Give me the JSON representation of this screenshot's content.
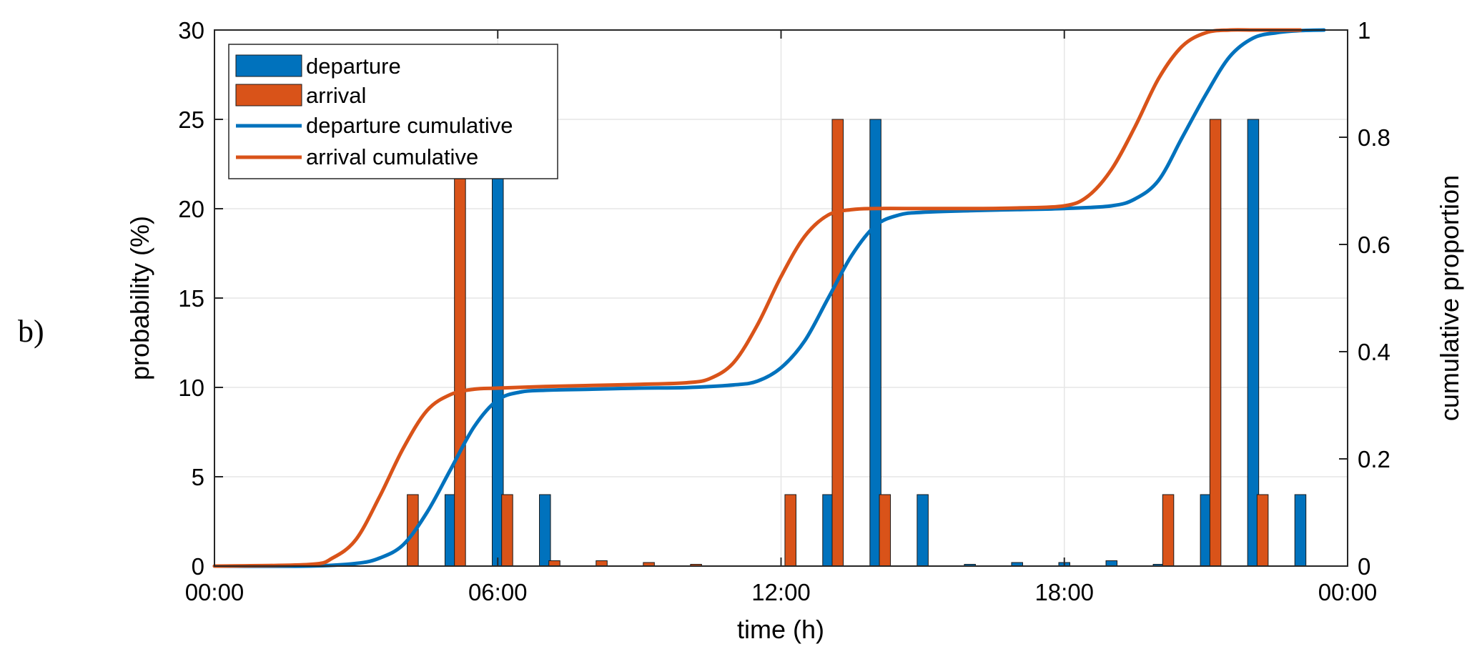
{
  "panel_label": "b)",
  "chart_data": {
    "type": "bar",
    "xlabel": "time (h)",
    "ylabel": "probability (%)",
    "y2label": "cumulative proportion",
    "xlim": [
      0,
      24
    ],
    "ylim": [
      0,
      30
    ],
    "y2lim": [
      0,
      1
    ],
    "grid": true,
    "legend_position": "top-left",
    "x_ticks": [
      {
        "value": 0,
        "label": "00:00"
      },
      {
        "value": 6,
        "label": "06:00"
      },
      {
        "value": 12,
        "label": "12:00"
      },
      {
        "value": 18,
        "label": "18:00"
      },
      {
        "value": 24,
        "label": "00:00"
      }
    ],
    "y_ticks": [
      0,
      5,
      10,
      15,
      20,
      25,
      30
    ],
    "y2_ticks": [
      {
        "value": 0,
        "label": "0"
      },
      {
        "value": 0.2,
        "label": "0.2"
      },
      {
        "value": 0.4,
        "label": "0.4"
      },
      {
        "value": 0.6,
        "label": "0.6"
      },
      {
        "value": 0.8,
        "label": "0.8"
      },
      {
        "value": 1,
        "label": "1"
      }
    ],
    "series": [
      {
        "name": "departure",
        "kind": "bar",
        "axis": "left",
        "color": "#0072BD",
        "x": [
          5.0,
          6.0,
          7.0,
          13.0,
          14.0,
          15.0,
          16.0,
          17.0,
          18.0,
          19.0,
          20.0,
          21.0,
          22.0,
          23.0
        ],
        "values": [
          4,
          22,
          4,
          4,
          25,
          4,
          0.1,
          0.2,
          0.2,
          0.3,
          0.1,
          4,
          25,
          4
        ]
      },
      {
        "name": "arrival",
        "kind": "bar",
        "axis": "left",
        "color": "#D95319",
        "x": [
          4.2,
          5.2,
          6.2,
          7.2,
          8.2,
          9.2,
          10.2,
          12.2,
          13.2,
          14.2,
          20.2,
          21.2,
          22.2
        ],
        "values": [
          4,
          22,
          4,
          0.3,
          0.3,
          0.2,
          0.1,
          4,
          25,
          4,
          4,
          25,
          4
        ]
      },
      {
        "name": "departure cumulative",
        "kind": "line",
        "axis": "right",
        "color": "#0072BD",
        "x": [
          0,
          2,
          3,
          3.5,
          4,
          4.5,
          5,
          5.5,
          6,
          6.5,
          7,
          8,
          9,
          10,
          11,
          11.5,
          12,
          12.5,
          13,
          13.5,
          14,
          14.5,
          15,
          16,
          17,
          18,
          19,
          19.5,
          20,
          20.5,
          21,
          21.5,
          22,
          22.5,
          23,
          23.5
        ],
        "values": [
          0,
          0,
          0.005,
          0.015,
          0.04,
          0.1,
          0.18,
          0.26,
          0.31,
          0.325,
          0.328,
          0.33,
          0.332,
          0.333,
          0.338,
          0.345,
          0.37,
          0.42,
          0.5,
          0.58,
          0.635,
          0.655,
          0.66,
          0.663,
          0.665,
          0.667,
          0.672,
          0.685,
          0.72,
          0.8,
          0.88,
          0.95,
          0.985,
          0.995,
          0.999,
          1.0
        ]
      },
      {
        "name": "arrival cumulative",
        "kind": "line",
        "axis": "right",
        "color": "#D95319",
        "x": [
          0,
          2,
          2.5,
          3,
          3.5,
          4,
          4.5,
          5,
          5.5,
          6,
          7,
          8,
          9,
          10,
          10.5,
          11,
          11.5,
          12,
          12.5,
          13,
          13.5,
          14,
          15,
          16,
          17,
          18,
          18.5,
          19,
          19.5,
          20,
          20.5,
          21,
          21.5,
          22,
          22.5,
          23
        ],
        "values": [
          0,
          0.003,
          0.015,
          0.05,
          0.13,
          0.22,
          0.29,
          0.32,
          0.33,
          0.332,
          0.335,
          0.337,
          0.339,
          0.342,
          0.35,
          0.38,
          0.45,
          0.54,
          0.615,
          0.655,
          0.665,
          0.667,
          0.667,
          0.667,
          0.668,
          0.672,
          0.69,
          0.74,
          0.82,
          0.91,
          0.97,
          0.995,
          1.0,
          1.0,
          1.0,
          1.0
        ]
      }
    ]
  }
}
